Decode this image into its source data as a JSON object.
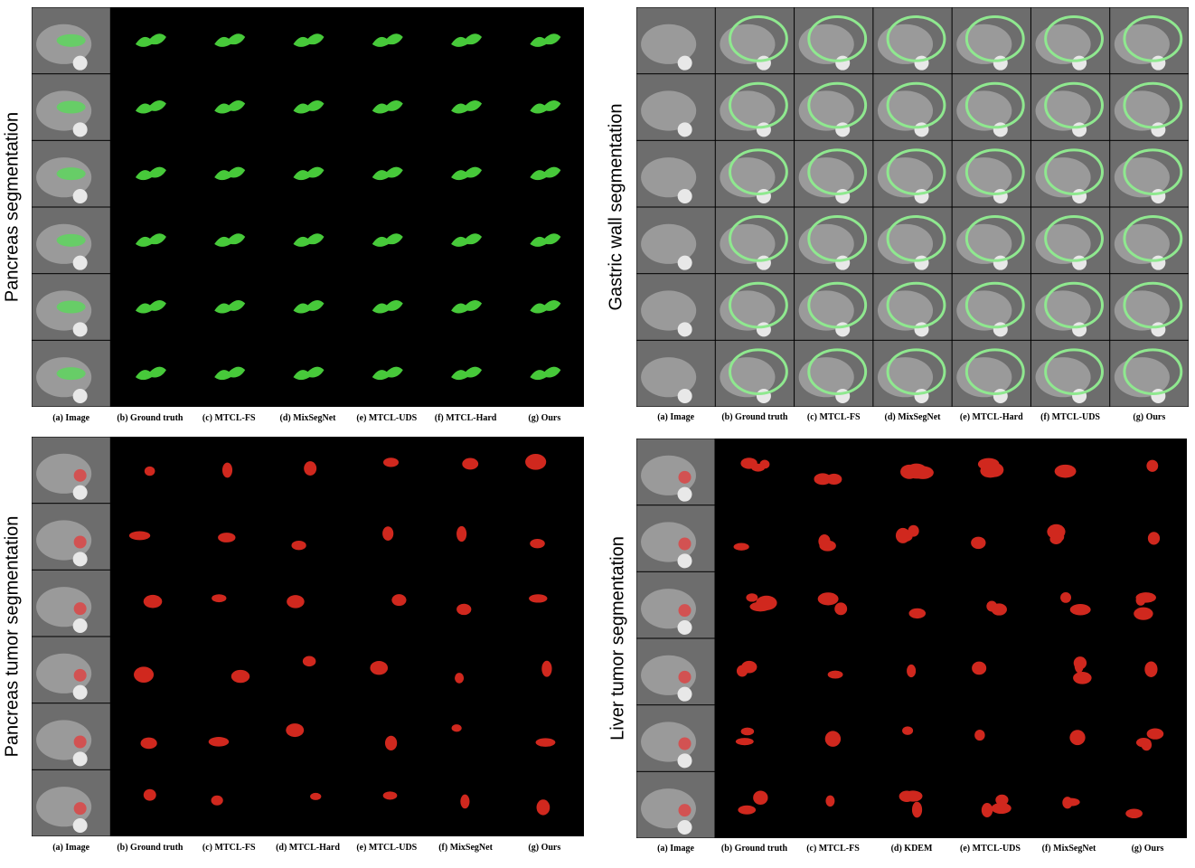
{
  "panels": [
    {
      "label": "Pancreas segmentation",
      "columns": [
        "(a) Image",
        "(b) Ground truth",
        "(c) MTCL-FS",
        "(d) MixSegNet",
        "(e) MTCL-UDS",
        "(f) MTCL-Hard",
        "(g) Ours"
      ]
    },
    {
      "label": "Gastric wall segmentation",
      "columns": [
        "(a) Image",
        "(b) Ground truth",
        "(c) MTCL-FS",
        "(d) MixSegNet",
        "(e) MTCL-Hard",
        "(f) MTCL-UDS",
        "(g) Ours"
      ]
    },
    {
      "label": "Pancreas tumor segmentation",
      "columns": [
        "(a) Image",
        "(b) Ground truth",
        "(c) MTCL-FS",
        "(d) MTCL-Hard",
        "(e) MTCL-UDS",
        "(f) MixSegNet",
        "(g) Ours"
      ]
    },
    {
      "label": "Liver tumor segmentation",
      "columns": [
        "(a) Image",
        "(b) Ground truth",
        "(c) MTCL-FS",
        "(d) KDEM",
        "(e) MTCL-UDS",
        "(f) MixSegNet",
        "(g) Ours"
      ]
    }
  ]
}
